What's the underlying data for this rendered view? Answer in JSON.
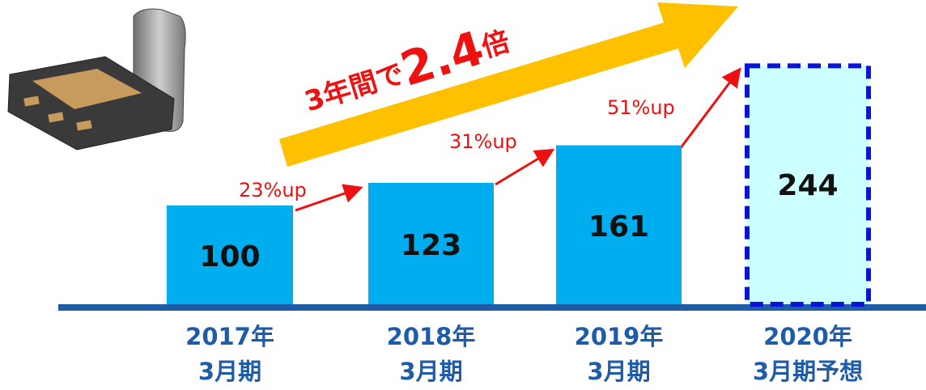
{
  "chart_data": {
    "type": "bar",
    "categories": [
      [
        "2017年",
        "3月期"
      ],
      [
        "2018年",
        "3月期"
      ],
      [
        "2019年",
        "3月期"
      ],
      [
        "2020年",
        "3月期予想"
      ]
    ],
    "values": [
      100,
      123,
      161,
      244
    ],
    "colors": [
      "#00aeef",
      "#00aeef",
      "#00aeef",
      "#ccffff"
    ],
    "dashed": [
      false,
      false,
      false,
      true
    ],
    "dash_color": "#0a14d8",
    "annotations": [
      "23%up",
      "31%up",
      "51%up"
    ],
    "headline": [
      "3年間で",
      "2.4",
      "倍"
    ]
  }
}
